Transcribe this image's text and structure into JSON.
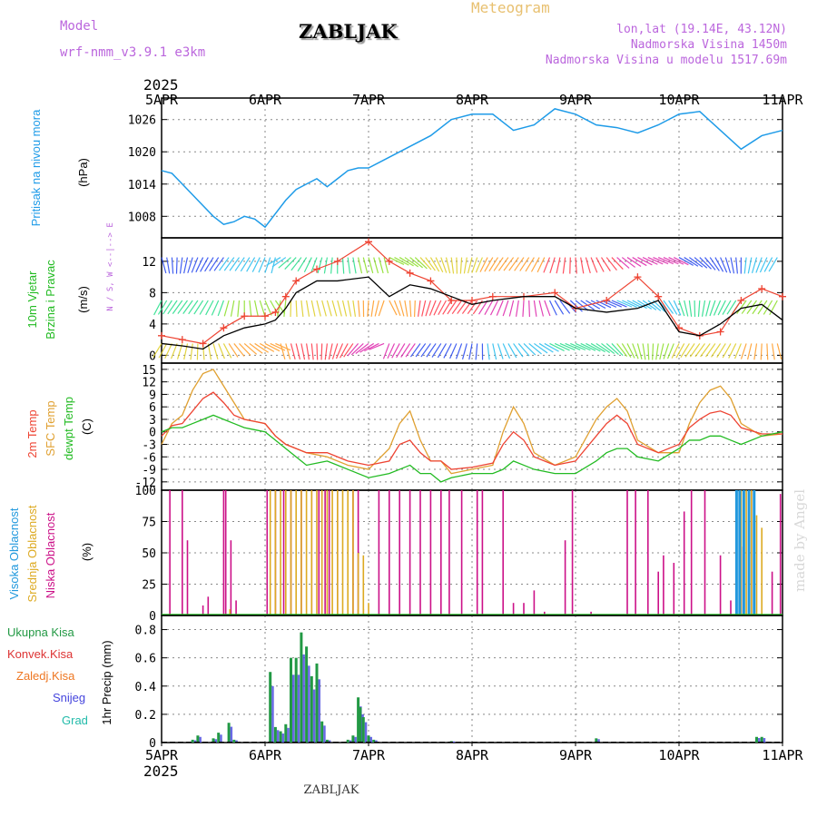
{
  "header": {
    "model_label": "Model",
    "model_name": "wrf-nmm_v3.9.1 e3km",
    "station": "ZABLJAK",
    "title": "Meteogram",
    "coords": "lon,lat (19.14E, 43.12N)",
    "altitude": "Nadmorska Visina 1450m",
    "model_altitude": "Nadmorska Visina u modelu 1517.69m",
    "year": "2025",
    "footer_station": "ZABLJAK",
    "credit": "made by Angel"
  },
  "colors": {
    "pressure": "#1e9be8",
    "temp2m": "#ee4433",
    "sfc_temp": "#e0a030",
    "dewpoint": "#22bb22",
    "wind_gust": "#ee4433",
    "wind_speed": "#000000",
    "cloud_high": "#2299dd",
    "cloud_mid": "#ddaa22",
    "cloud_low": "#cc1188",
    "precip_total": "#229944",
    "precip_conv": "#dd3333",
    "precip_frozen": "#ee7722",
    "precip_snow": "#4444dd",
    "precip_hail": "#22bbaa"
  },
  "chart_data": [
    {
      "type": "line",
      "panel": "pressure",
      "ylabel_main": "Pritisak na nivou mora",
      "ylabel_unit": "(hPa)",
      "yticks": [
        1008,
        1014,
        1020,
        1026
      ],
      "ylim": [
        1004,
        1030
      ],
      "x_days": [
        0,
        0.1,
        0.2,
        0.3,
        0.4,
        0.5,
        0.6,
        0.7,
        0.8,
        0.9,
        1.0,
        1.1,
        1.2,
        1.3,
        1.4,
        1.5,
        1.6,
        1.7,
        1.8,
        1.9,
        2.0,
        2.2,
        2.4,
        2.6,
        2.8,
        3.0,
        3.2,
        3.4,
        3.6,
        3.8,
        4.0,
        4.2,
        4.4,
        4.6,
        4.8,
        5.0,
        5.2,
        5.4,
        5.6,
        5.8,
        6.0
      ],
      "values": [
        1016.5,
        1016,
        1014,
        1012,
        1010,
        1008,
        1006.5,
        1007,
        1008,
        1007.5,
        1006,
        1008.5,
        1011,
        1013,
        1014,
        1015,
        1013.5,
        1015,
        1016.5,
        1017,
        1017,
        1019,
        1021,
        1023,
        1026,
        1027,
        1027,
        1024,
        1025,
        1028,
        1027,
        1025,
        1024.5,
        1023.5,
        1025,
        1027,
        1027.5,
        1024,
        1020.5,
        1023,
        1024
      ]
    },
    {
      "type": "line",
      "panel": "wind",
      "ylabel_main": "10m Vjetar",
      "ylabel_sub": "Brzina i Pravac",
      "ylabel_unit": "(m/s)",
      "compass": "N / S, W <--|--> E",
      "yticks": [
        0,
        4,
        8,
        12
      ],
      "ylim": [
        -1,
        15
      ],
      "x_days": [
        0,
        0.2,
        0.4,
        0.6,
        0.8,
        1.0,
        1.1,
        1.2,
        1.3,
        1.5,
        1.7,
        2.0,
        2.2,
        2.4,
        2.6,
        2.8,
        3.0,
        3.2,
        3.5,
        3.8,
        4.0,
        4.3,
        4.6,
        4.8,
        5.0,
        5.2,
        5.4,
        5.6,
        5.8,
        6.0
      ],
      "series": [
        {
          "name": "Mean wind",
          "values": [
            1.5,
            1.2,
            0.8,
            2.5,
            3.5,
            4.0,
            4.5,
            6.0,
            8.0,
            9.5,
            9.5,
            10.0,
            7.5,
            9.0,
            8.5,
            7.5,
            6.5,
            7.0,
            7.5,
            7.5,
            6.0,
            5.5,
            6.0,
            7.0,
            3.0,
            2.5,
            4.0,
            6.0,
            6.5,
            4.5
          ]
        },
        {
          "name": "Gust",
          "values": [
            2.5,
            2.0,
            1.5,
            3.5,
            5.0,
            5.0,
            5.5,
            7.5,
            9.5,
            11.0,
            12.0,
            14.5,
            12.0,
            10.5,
            9.5,
            7.0,
            7.0,
            7.5,
            7.5,
            8.0,
            6.0,
            7.0,
            10.0,
            7.5,
            3.5,
            2.5,
            3.0,
            7.0,
            8.5,
            7.5
          ]
        }
      ]
    },
    {
      "type": "line",
      "panel": "temperature",
      "ylabel_temp": "2m Temp",
      "ylabel_sfc": "SFC Temp",
      "ylabel_dew": "dewpt Temp",
      "ylabel_unit": "(C)",
      "yticks": [
        -12,
        -9,
        -6,
        -3,
        0,
        3,
        6,
        9,
        12,
        15
      ],
      "ylim": [
        -14,
        16.5
      ],
      "x_days": [
        0,
        0.1,
        0.2,
        0.3,
        0.4,
        0.5,
        0.6,
        0.7,
        0.8,
        0.9,
        1.0,
        1.1,
        1.2,
        1.4,
        1.6,
        1.8,
        2.0,
        2.2,
        2.3,
        2.4,
        2.5,
        2.6,
        2.7,
        2.8,
        3.0,
        3.2,
        3.3,
        3.4,
        3.5,
        3.6,
        3.8,
        4.0,
        4.2,
        4.3,
        4.4,
        4.5,
        4.6,
        4.8,
        5.0,
        5.1,
        5.2,
        5.3,
        5.4,
        5.5,
        5.6,
        5.8,
        6.0
      ],
      "series": [
        {
          "name": "2m Temp",
          "values": [
            -1,
            1.5,
            2,
            5,
            8,
            9.5,
            7,
            4,
            3,
            2.5,
            2,
            -1,
            -3,
            -5,
            -5,
            -7,
            -8,
            -7,
            -3,
            -2,
            -5,
            -7,
            -7,
            -9,
            -8.5,
            -7.5,
            -3,
            0,
            -2,
            -6,
            -8,
            -7,
            -1,
            2,
            4,
            2,
            -3,
            -5,
            -3,
            1,
            3,
            4.5,
            5,
            4,
            1,
            -0.5,
            -0.5
          ]
        },
        {
          "name": "SFC Temp",
          "values": [
            -3,
            2,
            4,
            10,
            14,
            15,
            11,
            7,
            3,
            2.5,
            2,
            -1,
            -3,
            -5,
            -6,
            -8,
            -9,
            -4,
            2,
            5,
            -2,
            -7,
            -7,
            -10,
            -9,
            -8,
            0,
            6,
            2,
            -5,
            -8,
            -6,
            3,
            6,
            8,
            5,
            -2,
            -5,
            -5,
            2,
            7,
            10,
            11,
            8,
            2,
            -1,
            -0.5
          ]
        },
        {
          "name": "dewpt Temp",
          "values": [
            0,
            1,
            1,
            2,
            3,
            4,
            3,
            2,
            1,
            0.5,
            0,
            -2,
            -4,
            -8,
            -7,
            -9,
            -11,
            -10,
            -9,
            -8,
            -10,
            -10,
            -12,
            -11,
            -10,
            -10,
            -9,
            -7,
            -8,
            -9,
            -10,
            -10,
            -7,
            -5,
            -4,
            -4,
            -6,
            -7,
            -4,
            -2,
            -2,
            -1,
            -1,
            -2,
            -3,
            -1,
            0
          ]
        }
      ]
    },
    {
      "type": "bar",
      "panel": "cloud",
      "ylabel_high": "Visoka Oblacnost",
      "ylabel_mid": "Srednja Oblacnost",
      "ylabel_low": "Niska Oblacnost",
      "ylabel_unit": "(%)",
      "yticks": [
        0,
        25,
        50,
        75,
        100
      ],
      "ylim": [
        0,
        100
      ],
      "series": [
        {
          "name": "Niska Oblacnost",
          "x_days": [
            0.08,
            0.2,
            0.25,
            0.4,
            0.45,
            0.6,
            0.62,
            0.67,
            0.72,
            1.02,
            1.1,
            1.18,
            1.25,
            1.35,
            1.45,
            1.52,
            1.58,
            1.62,
            1.7,
            1.85,
            1.9,
            2.1,
            2.2,
            2.3,
            2.4,
            2.5,
            2.6,
            2.7,
            2.78,
            2.9,
            3.05,
            3.1,
            3.3,
            3.4,
            3.5,
            3.6,
            3.7,
            3.9,
            3.97,
            4.15,
            4.5,
            4.58,
            4.7,
            4.8,
            4.85,
            4.95,
            5.05,
            5.12,
            5.25,
            5.4,
            5.5,
            5.6,
            5.7,
            5.9,
            5.98
          ],
          "values": [
            100,
            100,
            60,
            8,
            15,
            100,
            100,
            60,
            12,
            100,
            100,
            100,
            100,
            100,
            100,
            100,
            100,
            100,
            100,
            100,
            100,
            100,
            100,
            100,
            100,
            100,
            100,
            100,
            100,
            100,
            100,
            100,
            100,
            10,
            10,
            20,
            3,
            60,
            100,
            3,
            100,
            100,
            100,
            35,
            48,
            42,
            83,
            100,
            100,
            48,
            12,
            55,
            100,
            35,
            97
          ]
        },
        {
          "name": "Srednja Oblacnost",
          "x_days": [
            1.05,
            1.1,
            1.15,
            1.2,
            1.25,
            1.3,
            1.35,
            1.4,
            1.45,
            1.5,
            1.55,
            1.6,
            1.65,
            1.7,
            1.75,
            1.8,
            1.85,
            1.9,
            1.95,
            2.0,
            5.6,
            5.65,
            5.7,
            5.75,
            5.8,
            0.66,
            1.9,
            1.95
          ],
          "values": [
            100,
            100,
            100,
            100,
            100,
            100,
            100,
            100,
            100,
            100,
            100,
            100,
            100,
            100,
            100,
            100,
            100,
            50,
            48,
            10,
            100,
            100,
            100,
            80,
            70,
            5,
            5,
            5
          ]
        },
        {
          "name": "Visoka Oblacnost",
          "x_days": [
            5.55,
            5.58,
            5.62,
            5.67,
            5.72
          ],
          "values": [
            100,
            100,
            100,
            100,
            100
          ]
        }
      ]
    },
    {
      "type": "bar",
      "panel": "precip",
      "ylabel_total": "Ukupna Kisa",
      "ylabel_conv": "Konvek.Kisa",
      "ylabel_frozen": "Zaledj.Kisa",
      "ylabel_snow": "Snijeg",
      "ylabel_hail": "Grad",
      "ylabel_unit": "1hr Precip (mm)",
      "yticks": [
        0,
        0.2,
        0.4,
        0.6,
        0.8
      ],
      "ylim": [
        0,
        0.9
      ],
      "x_days": [
        0.3,
        0.35,
        0.5,
        0.55,
        0.65,
        0.7,
        1.05,
        1.1,
        1.15,
        1.2,
        1.25,
        1.3,
        1.35,
        1.4,
        1.45,
        1.5,
        1.55,
        1.6,
        1.8,
        1.85,
        1.9,
        1.92,
        1.95,
        2.0,
        2.05,
        2.8,
        4.2,
        5.75,
        5.8
      ],
      "values": [
        0.02,
        0.05,
        0.03,
        0.07,
        0.14,
        0.02,
        0.5,
        0.11,
        0.08,
        0.13,
        0.6,
        0.6,
        0.78,
        0.68,
        0.47,
        0.56,
        0.15,
        0.02,
        0.02,
        0.05,
        0.32,
        0.25,
        0.18,
        0.05,
        0.02,
        0.01,
        0.03,
        0.04,
        0.04
      ]
    }
  ],
  "x_axis": {
    "day_labels": [
      "5APR",
      "6APR",
      "7APR",
      "8APR",
      "9APR",
      "10APR",
      "11APR"
    ]
  }
}
